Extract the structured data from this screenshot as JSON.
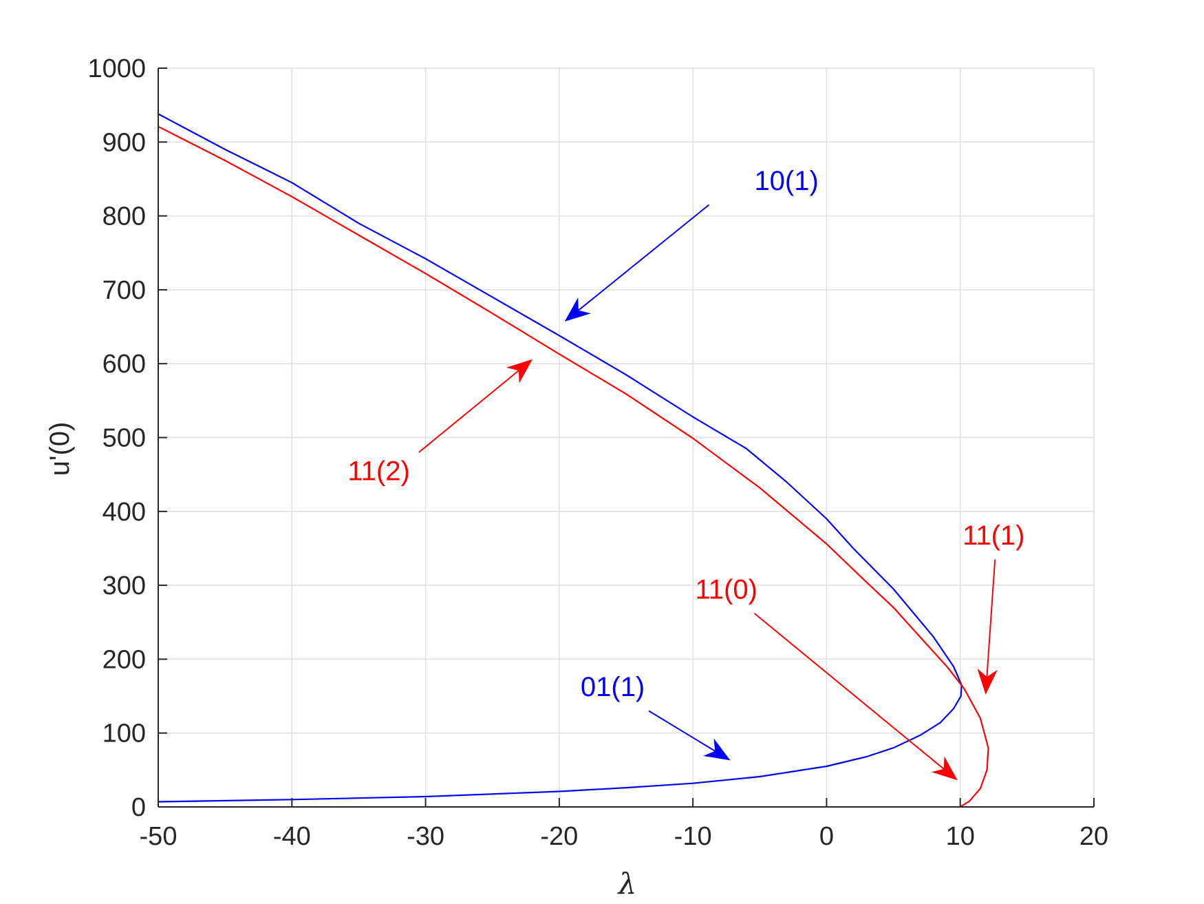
{
  "chart_data": {
    "type": "line",
    "title": "",
    "xlabel": "λ",
    "ylabel": "u'(0)",
    "xlim": [
      -50,
      20
    ],
    "ylim": [
      0,
      1000
    ],
    "xticks": [
      -50,
      -40,
      -30,
      -20,
      -10,
      0,
      10,
      20
    ],
    "yticks": [
      0,
      100,
      200,
      300,
      400,
      500,
      600,
      700,
      800,
      900,
      1000
    ],
    "xtick_labels": [
      "-50",
      "-40",
      "-30",
      "-20",
      "-10",
      "0",
      "10",
      "20"
    ],
    "ytick_labels": [
      "0",
      "100",
      "200",
      "300",
      "400",
      "500",
      "600",
      "700",
      "800",
      "900",
      "1000"
    ],
    "grid": true,
    "colors": {
      "blue": "#0000ff",
      "red": "#ff0000",
      "axis": "#262626",
      "grid": "#dfdfdf"
    },
    "series": [
      {
        "color": "#0000ff",
        "points": [
          [
            -50,
            7
          ],
          [
            -40,
            10
          ],
          [
            -30,
            14
          ],
          [
            -20,
            21
          ],
          [
            -15,
            26
          ],
          [
            -10,
            32
          ],
          [
            -5,
            41
          ],
          [
            0,
            55
          ],
          [
            3,
            68
          ],
          [
            5,
            80
          ],
          [
            7,
            97
          ],
          [
            8.5,
            114
          ],
          [
            9.5,
            133
          ],
          [
            10.05,
            150
          ],
          [
            10.1,
            165
          ],
          [
            9.5,
            190
          ],
          [
            8,
            230
          ],
          [
            5,
            295
          ],
          [
            2,
            350
          ],
          [
            0,
            390
          ],
          [
            -3,
            440
          ],
          [
            -6,
            485
          ],
          [
            -10,
            528
          ],
          [
            -15,
            585
          ],
          [
            -20,
            638
          ],
          [
            -25,
            690
          ],
          [
            -30,
            742
          ],
          [
            -35,
            790
          ],
          [
            -40,
            845
          ],
          [
            -45,
            890
          ],
          [
            -50,
            938
          ]
        ]
      },
      {
        "color": "#ff0000",
        "points": [
          [
            -50,
            921
          ],
          [
            -45,
            875
          ],
          [
            -40,
            826
          ],
          [
            -35,
            774
          ],
          [
            -30,
            722
          ],
          [
            -25,
            668
          ],
          [
            -20,
            613
          ],
          [
            -15,
            559
          ],
          [
            -10,
            499
          ],
          [
            -5,
            432
          ],
          [
            0,
            356
          ],
          [
            3,
            304
          ],
          [
            5,
            270
          ],
          [
            7,
            230
          ],
          [
            9,
            190
          ],
          [
            10.3,
            160
          ],
          [
            11.5,
            120
          ],
          [
            12.1,
            80
          ],
          [
            12,
            50
          ],
          [
            11.5,
            25
          ],
          [
            10.7,
            8
          ],
          [
            10,
            0
          ]
        ]
      }
    ],
    "annotations": [
      {
        "text": "10(1)",
        "color": "#0000ff",
        "label_at": [
          -3,
          835
        ],
        "arrow_from": [
          -8.8,
          815
        ],
        "arrow_to": [
          -19.6,
          657
        ]
      },
      {
        "text": "11(2)",
        "color": "#ff0000",
        "label_at": [
          -33.5,
          442
        ],
        "arrow_from": [
          -30.5,
          480
        ],
        "arrow_to": [
          -22,
          606
        ]
      },
      {
        "text": "11(1)",
        "color": "#ff0000",
        "label_at": [
          12.5,
          355
        ],
        "arrow_from": [
          12.6,
          335
        ],
        "arrow_to": [
          11.9,
          152
        ]
      },
      {
        "text": "11(0)",
        "color": "#ff0000",
        "label_at": [
          -7.5,
          282
        ],
        "arrow_from": [
          -5.4,
          262
        ],
        "arrow_to": [
          9.8,
          36
        ]
      },
      {
        "text": "01(1)",
        "color": "#0000ff",
        "label_at": [
          -16,
          150
        ],
        "arrow_from": [
          -13.3,
          130
        ],
        "arrow_to": [
          -7.2,
          63
        ]
      }
    ]
  }
}
